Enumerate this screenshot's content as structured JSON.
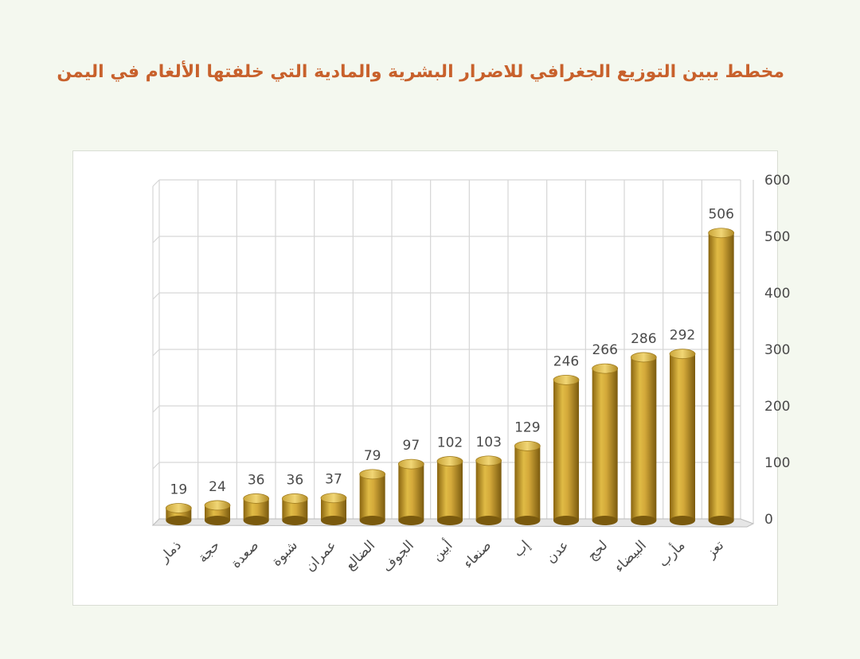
{
  "title": "مخطط يبين التوزيع الجغرافي للاضرار البشرية والمادية التي خلفتها الألغام في اليمن",
  "chart_data": {
    "type": "bar",
    "title": "مخطط يبين التوزيع الجغرافي للاضرار البشرية والمادية التي خلفتها الألغام في اليمن",
    "categories": [
      "ذمار",
      "حجة",
      "صعدة",
      "شبوة",
      "عمران",
      "الضالع",
      "الجوف",
      "أبين",
      "صنعاء",
      "إب",
      "عدن",
      "لحج",
      "البيضاء",
      "مأرب",
      "تعز"
    ],
    "values": [
      19,
      24,
      36,
      36,
      37,
      79,
      97,
      102,
      103,
      129,
      246,
      266,
      286,
      292,
      506
    ],
    "ylim": [
      0,
      600
    ],
    "yticks": [
      0,
      100,
      200,
      300,
      400,
      500,
      600
    ],
    "y_axis_side": "right",
    "grid": true,
    "bar_color": "#c9a12a",
    "xlabel": "",
    "ylabel": ""
  }
}
